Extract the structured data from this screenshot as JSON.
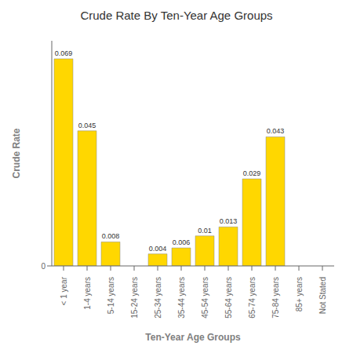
{
  "chart_data": {
    "type": "bar",
    "title": "Crude Rate By Ten-Year Age Groups",
    "xlabel": "Ten-Year Age Groups",
    "ylabel": "Crude Rate",
    "categories": [
      "< 1 year",
      "1-4 years",
      "5-14 years",
      "15-24 years",
      "25-34 years",
      "35-44 years",
      "45-54 years",
      "55-64 years",
      "65-74 years",
      "75-84 years",
      "85+ years",
      "Not Stated"
    ],
    "values": [
      0.069,
      0.045,
      0.008,
      0.0,
      0.004,
      0.006,
      0.01,
      0.013,
      0.029,
      0.043,
      0.0,
      0.0
    ],
    "color": "#FFD700",
    "ylim": [
      0,
      0.075
    ],
    "yticks": [
      0
    ],
    "grid": false,
    "data_labels": true
  }
}
